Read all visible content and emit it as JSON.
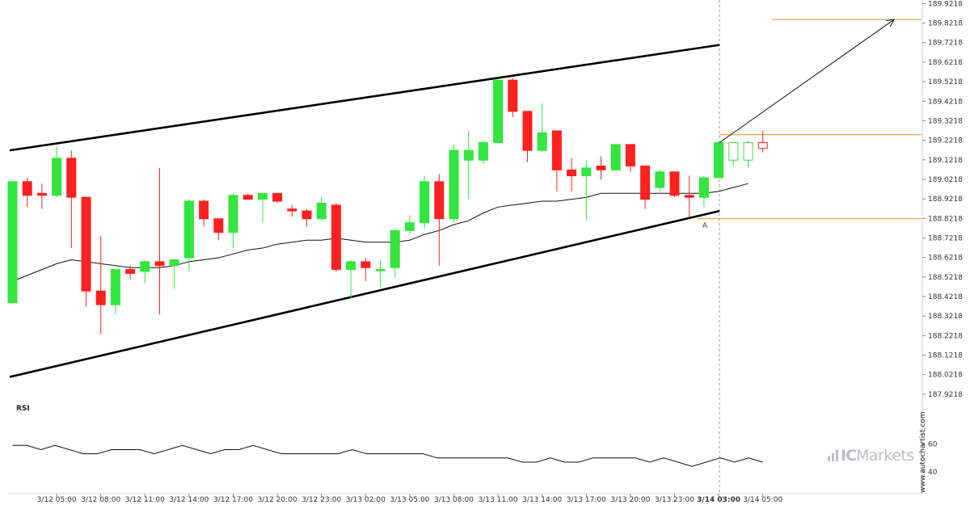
{
  "chart_data": {
    "type": "candlestick",
    "instrument_price_axis": {
      "ticks": [
        "189.9218",
        "189.8218",
        "189.7218",
        "189.6218",
        "189.5218",
        "189.4218",
        "189.3218",
        "189.2218",
        "189.1218",
        "189.0218",
        "188.9218",
        "188.8218",
        "188.7218",
        "188.6218",
        "188.5218",
        "188.4218",
        "188.3218",
        "188.2218",
        "188.1218",
        "188.0218",
        "187.9218"
      ],
      "ylim": [
        187.88,
        189.94
      ]
    },
    "time_axis": {
      "ticks": [
        "3/12 05:00",
        "3/12 08:00",
        "3/12 11:00",
        "3/12 14:00",
        "3/12 17:00",
        "3/12 20:00",
        "3/12 23:00",
        "3/13 02:00",
        "3/13 05:00",
        "3/13 08:00",
        "3/13 11:00",
        "3/13 14:00",
        "3/13 17:00",
        "3/13 20:00",
        "3/13 23:00",
        "3/14 03:00",
        "3/14 05:00"
      ],
      "highlighted_tick": "3/14 03:00"
    },
    "candles": [
      {
        "o": 188.39,
        "h": 189.01,
        "l": 188.39,
        "c": 189.01,
        "kind": "bull"
      },
      {
        "o": 189.01,
        "h": 189.03,
        "l": 188.88,
        "c": 188.94,
        "kind": "bear"
      },
      {
        "o": 188.95,
        "h": 189.0,
        "l": 188.87,
        "c": 188.94,
        "kind": "bear"
      },
      {
        "o": 188.94,
        "h": 189.19,
        "l": 188.93,
        "c": 189.13,
        "kind": "bull"
      },
      {
        "o": 189.13,
        "h": 189.17,
        "l": 188.67,
        "c": 188.93,
        "kind": "bear"
      },
      {
        "o": 188.93,
        "h": 188.93,
        "l": 188.37,
        "c": 188.45,
        "kind": "bear"
      },
      {
        "o": 188.45,
        "h": 188.73,
        "l": 188.23,
        "c": 188.38,
        "kind": "bear"
      },
      {
        "o": 188.38,
        "h": 188.56,
        "l": 188.33,
        "c": 188.56,
        "kind": "bull"
      },
      {
        "o": 188.56,
        "h": 188.58,
        "l": 188.51,
        "c": 188.54,
        "kind": "bear"
      },
      {
        "o": 188.55,
        "h": 188.61,
        "l": 188.49,
        "c": 188.6,
        "kind": "bull"
      },
      {
        "o": 188.6,
        "h": 189.08,
        "l": 188.33,
        "c": 188.58,
        "kind": "bear"
      },
      {
        "o": 188.58,
        "h": 188.61,
        "l": 188.46,
        "c": 188.61,
        "kind": "bull"
      },
      {
        "o": 188.62,
        "h": 188.92,
        "l": 188.55,
        "c": 188.91,
        "kind": "bull"
      },
      {
        "o": 188.91,
        "h": 188.92,
        "l": 188.78,
        "c": 188.82,
        "kind": "bear"
      },
      {
        "o": 188.82,
        "h": 188.82,
        "l": 188.71,
        "c": 188.75,
        "kind": "bear"
      },
      {
        "o": 188.75,
        "h": 188.95,
        "l": 188.67,
        "c": 188.94,
        "kind": "bull"
      },
      {
        "o": 188.94,
        "h": 188.95,
        "l": 188.92,
        "c": 188.92,
        "kind": "bear"
      },
      {
        "o": 188.92,
        "h": 188.95,
        "l": 188.8,
        "c": 188.95,
        "kind": "bull"
      },
      {
        "o": 188.95,
        "h": 188.95,
        "l": 188.9,
        "c": 188.91,
        "kind": "bear"
      },
      {
        "o": 188.87,
        "h": 188.89,
        "l": 188.83,
        "c": 188.86,
        "kind": "bear"
      },
      {
        "o": 188.86,
        "h": 188.87,
        "l": 188.78,
        "c": 188.82,
        "kind": "bear"
      },
      {
        "o": 188.82,
        "h": 188.93,
        "l": 188.81,
        "c": 188.9,
        "kind": "bull"
      },
      {
        "o": 188.89,
        "h": 188.9,
        "l": 188.55,
        "c": 188.56,
        "kind": "bear"
      },
      {
        "o": 188.56,
        "h": 188.61,
        "l": 188.41,
        "c": 188.6,
        "kind": "bull"
      },
      {
        "o": 188.6,
        "h": 188.62,
        "l": 188.5,
        "c": 188.57,
        "kind": "bear"
      },
      {
        "o": 188.56,
        "h": 188.61,
        "l": 188.47,
        "c": 188.56,
        "kind": "bull"
      },
      {
        "o": 188.57,
        "h": 188.76,
        "l": 188.52,
        "c": 188.76,
        "kind": "bull"
      },
      {
        "o": 188.76,
        "h": 188.84,
        "l": 188.74,
        "c": 188.8,
        "kind": "bull"
      },
      {
        "o": 188.8,
        "h": 189.04,
        "l": 188.77,
        "c": 189.01,
        "kind": "bull"
      },
      {
        "o": 189.01,
        "h": 189.05,
        "l": 188.58,
        "c": 188.82,
        "kind": "bear"
      },
      {
        "o": 188.82,
        "h": 189.2,
        "l": 188.8,
        "c": 189.17,
        "kind": "bull"
      },
      {
        "o": 189.17,
        "h": 189.27,
        "l": 188.92,
        "c": 189.12,
        "kind": "bull"
      },
      {
        "o": 189.12,
        "h": 189.22,
        "l": 189.1,
        "c": 189.21,
        "kind": "bull"
      },
      {
        "o": 189.21,
        "h": 189.53,
        "l": 189.21,
        "c": 189.53,
        "kind": "bull"
      },
      {
        "o": 189.53,
        "h": 189.54,
        "l": 189.34,
        "c": 189.37,
        "kind": "bear"
      },
      {
        "o": 189.37,
        "h": 189.37,
        "l": 189.11,
        "c": 189.17,
        "kind": "bear"
      },
      {
        "o": 189.17,
        "h": 189.41,
        "l": 189.16,
        "c": 189.26,
        "kind": "bull"
      },
      {
        "o": 189.27,
        "h": 189.27,
        "l": 188.96,
        "c": 189.07,
        "kind": "bear"
      },
      {
        "o": 189.07,
        "h": 189.13,
        "l": 188.96,
        "c": 189.04,
        "kind": "bear"
      },
      {
        "o": 189.04,
        "h": 189.12,
        "l": 188.81,
        "c": 189.08,
        "kind": "bull"
      },
      {
        "o": 189.09,
        "h": 189.14,
        "l": 189.02,
        "c": 189.07,
        "kind": "bear"
      },
      {
        "o": 189.07,
        "h": 189.2,
        "l": 189.07,
        "c": 189.2,
        "kind": "bull"
      },
      {
        "o": 189.2,
        "h": 189.2,
        "l": 189.06,
        "c": 189.09,
        "kind": "bear"
      },
      {
        "o": 189.09,
        "h": 189.09,
        "l": 188.87,
        "c": 188.92,
        "kind": "bear"
      },
      {
        "o": 188.98,
        "h": 189.07,
        "l": 188.96,
        "c": 189.06,
        "kind": "bull"
      },
      {
        "o": 189.06,
        "h": 189.06,
        "l": 188.93,
        "c": 188.94,
        "kind": "bear"
      },
      {
        "o": 188.94,
        "h": 189.04,
        "l": 188.83,
        "c": 188.93,
        "kind": "bear"
      },
      {
        "o": 188.93,
        "h": 189.04,
        "l": 188.88,
        "c": 189.03,
        "kind": "bull"
      },
      {
        "o": 189.03,
        "h": 189.21,
        "l": 189.03,
        "c": 189.21,
        "kind": "bull"
      },
      {
        "o": 189.12,
        "h": 189.21,
        "l": 189.09,
        "c": 189.21,
        "kind": "projected-bull"
      },
      {
        "o": 189.12,
        "h": 189.22,
        "l": 189.08,
        "c": 189.21,
        "kind": "projected-bull"
      },
      {
        "o": 189.21,
        "h": 189.27,
        "l": 189.16,
        "c": 189.18,
        "kind": "projected-bear"
      }
    ],
    "moving_average": [
      188.5,
      188.53,
      188.56,
      188.59,
      188.61,
      188.6,
      188.59,
      188.58,
      188.57,
      188.57,
      188.57,
      188.58,
      188.6,
      188.61,
      188.62,
      188.64,
      188.66,
      188.67,
      188.69,
      188.7,
      188.71,
      188.71,
      188.72,
      188.71,
      188.7,
      188.7,
      188.7,
      188.71,
      188.74,
      188.76,
      188.79,
      188.81,
      188.85,
      188.88,
      188.89,
      188.9,
      188.91,
      188.91,
      188.92,
      188.93,
      188.95,
      188.95,
      188.95,
      188.95,
      188.95,
      188.95,
      188.95,
      188.95,
      188.96,
      188.98,
      189.0
    ],
    "channel": {
      "upper": {
        "from": 189.17,
        "to": 189.71
      },
      "lower": {
        "from": 188.01,
        "to": 188.86
      }
    },
    "horizontal_levels": {
      "target": 189.84,
      "resistance": 189.25,
      "support": 188.82
    },
    "point_marker": "A",
    "rsi": {
      "label": "RSI",
      "ticks": [
        "60",
        "40"
      ],
      "ylim": [
        25,
        80
      ],
      "values": [
        59,
        59,
        56,
        59,
        56,
        53,
        53,
        56,
        56,
        56,
        53,
        56,
        59,
        56,
        53,
        56,
        56,
        59,
        56,
        53,
        53,
        53,
        53,
        53,
        56,
        53,
        53,
        53,
        53,
        53,
        50,
        50,
        50,
        50,
        50,
        50,
        47,
        47,
        50,
        47,
        47,
        50,
        50,
        50,
        50,
        47,
        50,
        47,
        44,
        47,
        50,
        47,
        50,
        47
      ]
    },
    "colors": {
      "bull": "#33e53e",
      "bear": "#ff2020",
      "projected_bull": "#33e53e",
      "projected_bear": "#ff2020",
      "level_line": "#e8902a",
      "channel": "#000000",
      "grid_axis": "#bdbdbd"
    }
  },
  "watermark": "www.autochartist.com",
  "brand": {
    "ic": "IC",
    "markets": "Markets"
  }
}
